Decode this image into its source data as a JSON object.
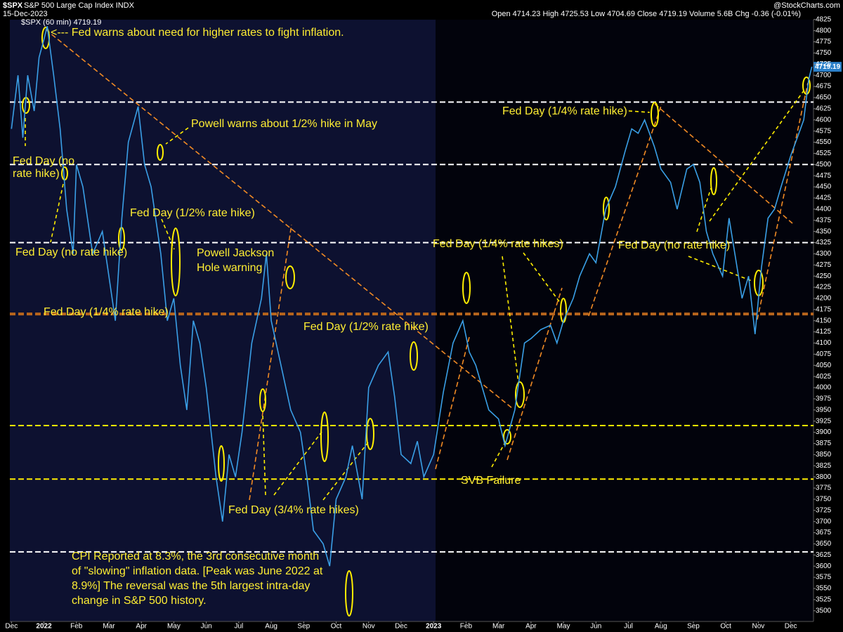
{
  "chart_data": {
    "type": "line",
    "symbol": "$SPX",
    "name": "S&P 500 Large Cap Index INDX",
    "date": "15-Dec-2023",
    "ohlc": "Open 4714.23 High 4725.53 Low 4704.69 Close 4719.19 Volume 5.6B Chg -0.36 (-0.01%)",
    "credit": "@StockCharts.com",
    "last_price": "4719.19",
    "x": [
      0,
      0.2,
      0.35,
      0.5,
      0.7,
      0.85,
      1.0,
      1.1,
      1.3,
      1.5,
      1.7,
      1.9,
      2.0,
      2.2,
      2.5,
      2.8,
      3.0,
      3.2,
      3.4,
      3.6,
      3.9,
      4.1,
      4.3,
      4.6,
      4.8,
      5.0,
      5.2,
      5.4,
      5.6,
      5.8,
      6.0,
      6.3,
      6.5,
      6.7,
      6.9,
      7.1,
      7.4,
      7.7,
      7.85,
      8.0,
      8.3,
      8.6,
      8.9,
      9.1,
      9.3,
      9.6,
      9.8,
      10.0,
      10.3,
      10.5,
      10.8,
      11.0,
      11.3,
      11.6,
      11.8,
      12.0,
      12.3,
      12.5,
      12.7,
      13.0,
      13.3,
      13.6,
      13.9,
      14.1,
      14.3,
      14.5,
      14.7,
      15.0,
      15.2,
      15.5,
      15.8,
      16.0,
      16.3,
      16.6,
      16.8,
      17.0,
      17.3,
      17.5,
      17.8,
      18.0,
      18.3,
      18.6,
      18.9,
      19.1,
      19.3,
      19.5,
      19.8,
      20.0,
      20.3,
      20.5,
      20.8,
      21.0,
      21.2,
      21.4,
      21.6,
      21.9,
      22.1,
      22.3,
      22.5,
      22.7,
      22.9,
      23.1,
      23.3,
      23.5,
      23.7,
      24.0,
      24.2,
      24.4,
      24.55,
      24.65
    ],
    "series": [
      {
        "name": "$SPX (60 min) 4719.19",
        "color": "#3a9fe6",
        "values": [
          4580,
          4700,
          4560,
          4700,
          4620,
          4740,
          4780,
          4810,
          4700,
          4580,
          4400,
          4300,
          4500,
          4450,
          4300,
          4350,
          4250,
          4150,
          4380,
          4550,
          4630,
          4500,
          4450,
          4300,
          4150,
          4200,
          4050,
          3950,
          4150,
          4100,
          4000,
          3800,
          3700,
          3850,
          3800,
          3900,
          4100,
          4200,
          4300,
          4150,
          4050,
          3950,
          3900,
          3800,
          3680,
          3650,
          3600,
          3750,
          3800,
          3870,
          3750,
          4000,
          4050,
          4080,
          3980,
          3850,
          3830,
          3880,
          3800,
          3850,
          3990,
          4100,
          4150,
          4080,
          4050,
          4000,
          3950,
          3930,
          3870,
          3950,
          4100,
          4110,
          4130,
          4140,
          4100,
          4150,
          4200,
          4250,
          4300,
          4280,
          4400,
          4450,
          4530,
          4580,
          4570,
          4600,
          4540,
          4490,
          4460,
          4400,
          4490,
          4500,
          4460,
          4350,
          4300,
          4250,
          4380,
          4290,
          4200,
          4250,
          4120,
          4270,
          4380,
          4400,
          4450,
          4520,
          4560,
          4600,
          4690,
          4719
        ]
      }
    ],
    "xlim": [
      -0.05,
      24.7
    ],
    "xticks": [
      {
        "value": 0,
        "label": "Dec"
      },
      {
        "value": 1,
        "label": "2022"
      },
      {
        "value": 2,
        "label": "Feb"
      },
      {
        "value": 3,
        "label": "Mar"
      },
      {
        "value": 4,
        "label": "Apr"
      },
      {
        "value": 5,
        "label": "May"
      },
      {
        "value": 6,
        "label": "Jun"
      },
      {
        "value": 7,
        "label": "Jul"
      },
      {
        "value": 8,
        "label": "Aug"
      },
      {
        "value": 9,
        "label": "Sep"
      },
      {
        "value": 10,
        "label": "Oct"
      },
      {
        "value": 11,
        "label": "Nov"
      },
      {
        "value": 12,
        "label": "Dec"
      },
      {
        "value": 13,
        "label": "2023"
      },
      {
        "value": 14,
        "label": "Feb"
      },
      {
        "value": 15,
        "label": "Mar"
      },
      {
        "value": 16,
        "label": "Apr"
      },
      {
        "value": 17,
        "label": "May"
      },
      {
        "value": 18,
        "label": "Jun"
      },
      {
        "value": 19,
        "label": "Jul"
      },
      {
        "value": 20,
        "label": "Aug"
      },
      {
        "value": 21,
        "label": "Sep"
      },
      {
        "value": 22,
        "label": "Oct"
      },
      {
        "value": 23,
        "label": "Nov"
      },
      {
        "value": 24,
        "label": "Dec"
      }
    ],
    "ylim": [
      3476,
      4853
    ],
    "yticks": [
      3500,
      3525,
      3550,
      3575,
      3600,
      3625,
      3650,
      3675,
      3700,
      3725,
      3750,
      3775,
      3800,
      3825,
      3850,
      3875,
      3900,
      3925,
      3950,
      3975,
      4000,
      4025,
      4050,
      4075,
      4100,
      4125,
      4150,
      4175,
      4200,
      4225,
      4250,
      4275,
      4300,
      4325,
      4350,
      4375,
      4400,
      4425,
      4450,
      4475,
      4500,
      4525,
      4550,
      4575,
      4600,
      4625,
      4650,
      4675,
      4700,
      4725,
      4750,
      4775,
      4800,
      4825
    ],
    "levels": [
      {
        "value": 4640,
        "color": "#ffffff"
      },
      {
        "value": 4500,
        "color": "#ffffff"
      },
      {
        "value": 4325,
        "color": "#ffffff"
      },
      {
        "value": 4165,
        "color": "#b8651c"
      },
      {
        "value": 3915,
        "color": "#ffee00"
      },
      {
        "value": 3795,
        "color": "#ffee00"
      },
      {
        "value": 3632,
        "color": "#ffffff"
      }
    ],
    "annotations": [
      [
        "<--- Fed warns about need for higher rates to fight inflation."
      ],
      [
        "Powell warns about 1/2% hike in May"
      ],
      [
        "Fed Day (no",
        "rate hike)"
      ],
      [
        "Fed Day (1/2% rate hike)"
      ],
      [
        "Fed Day (no rate hike)"
      ],
      [
        "Powell Jackson",
        "Hole warning"
      ],
      [
        "Fed Day (1/4% rate hike)"
      ],
      [
        "Fed Day (1/2% rate hike)"
      ],
      [
        "Fed Day (1/4% rate hikes)"
      ],
      [
        "Fed Day (1/4% rate hike)"
      ],
      [
        "Fed Day (no rate hike)"
      ],
      [
        "SVB Failure"
      ],
      [
        "Fed Day (3/4% rate hikes)"
      ],
      [
        "CPI Reported at 8.3%, the 3rd consecutive month",
        "of \"slowing\" inflation data. [Peak was June 2022 at",
        "8.9%] The reversal was the 5th largest intra-day",
        "change in S&P 500 history."
      ]
    ]
  }
}
